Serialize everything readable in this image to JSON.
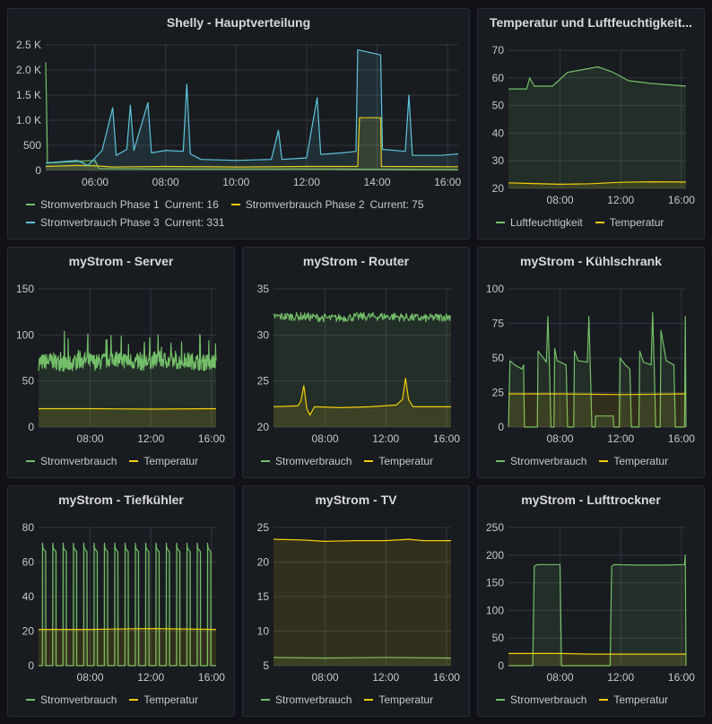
{
  "colors": {
    "background": "#111217",
    "panel": "#181b1f",
    "grid": "#33363c",
    "text": "#c7c8ca",
    "green": "#73bf69",
    "yellow": "#f2cc0c",
    "blue": "#5dc4dd"
  },
  "chart_data": [
    {
      "title": "Shelly - Hauptverteilung",
      "type": "area",
      "x_ticks": [
        "06:00",
        "08:00",
        "10:00",
        "12:00",
        "14:00",
        "16:00"
      ],
      "y_ticks": [
        "0",
        "500",
        "1.0 K",
        "1.5 K",
        "2.0 K",
        "2.5 K"
      ],
      "ylim": [
        0,
        2500
      ],
      "xlim": [
        4.6,
        16.3
      ],
      "grid": true,
      "legend_placement": "bottom",
      "series": [
        {
          "name": "Stromverbrauch Phase 1",
          "color": "green",
          "current_label": "Current: 16",
          "points": [
            [
              4.6,
              2150
            ],
            [
              4.65,
              150
            ],
            [
              5.5,
              180
            ],
            [
              6.0,
              200
            ],
            [
              6.1,
              40
            ],
            [
              8.0,
              30
            ],
            [
              10.0,
              30
            ],
            [
              12.0,
              30
            ],
            [
              13.5,
              25
            ],
            [
              13.52,
              25
            ],
            [
              16.3,
              16
            ]
          ]
        },
        {
          "name": "Stromverbrauch Phase 2",
          "color": "yellow",
          "current_label": "Current: 75",
          "points": [
            [
              4.6,
              80
            ],
            [
              5.5,
              100
            ],
            [
              6.1,
              90
            ],
            [
              6.5,
              70
            ],
            [
              8.0,
              80
            ],
            [
              10.0,
              70
            ],
            [
              12.0,
              80
            ],
            [
              13.45,
              80
            ],
            [
              13.5,
              1050
            ],
            [
              14.1,
              1050
            ],
            [
              14.12,
              80
            ],
            [
              16.3,
              75
            ]
          ]
        },
        {
          "name": "Stromverbrauch Phase 3",
          "color": "blue",
          "current_label": "Current: 331",
          "points": [
            [
              4.6,
              150
            ],
            [
              5.5,
              200
            ],
            [
              5.8,
              100
            ],
            [
              6.2,
              400
            ],
            [
              6.5,
              1250
            ],
            [
              6.6,
              300
            ],
            [
              6.9,
              420
            ],
            [
              7.0,
              1300
            ],
            [
              7.1,
              400
            ],
            [
              7.5,
              1350
            ],
            [
              7.6,
              350
            ],
            [
              8.0,
              400
            ],
            [
              8.5,
              380
            ],
            [
              8.6,
              1720
            ],
            [
              8.7,
              330
            ],
            [
              9.0,
              220
            ],
            [
              10.0,
              200
            ],
            [
              11.0,
              220
            ],
            [
              11.2,
              800
            ],
            [
              11.3,
              220
            ],
            [
              12.0,
              250
            ],
            [
              12.3,
              1450
            ],
            [
              12.4,
              320
            ],
            [
              13.0,
              350
            ],
            [
              13.4,
              380
            ],
            [
              13.45,
              2400
            ],
            [
              14.1,
              2300
            ],
            [
              14.15,
              420
            ],
            [
              14.8,
              380
            ],
            [
              14.9,
              1500
            ],
            [
              15.0,
              300
            ],
            [
              15.8,
              300
            ],
            [
              16.3,
              331
            ]
          ]
        }
      ]
    },
    {
      "title": "Temperatur und Luftfeuchtigkeit...",
      "type": "area",
      "x_ticks": [
        "08:00",
        "12:00",
        "16:00"
      ],
      "y_ticks": [
        "20",
        "30",
        "40",
        "50",
        "60",
        "70"
      ],
      "ylim": [
        20,
        70
      ],
      "xlim": [
        4.6,
        16.3
      ],
      "grid": true,
      "legend_placement": "bottom",
      "series": [
        {
          "name": "Luftfeuchtigkeit",
          "color": "green",
          "points": [
            [
              4.6,
              56
            ],
            [
              5.8,
              56
            ],
            [
              6.0,
              60
            ],
            [
              6.3,
              57
            ],
            [
              7.5,
              57
            ],
            [
              8.5,
              62
            ],
            [
              9.5,
              63
            ],
            [
              10.5,
              64
            ],
            [
              11.5,
              62
            ],
            [
              12.5,
              59
            ],
            [
              14.0,
              58
            ],
            [
              16.3,
              57
            ]
          ]
        },
        {
          "name": "Temperatur",
          "color": "yellow",
          "points": [
            [
              4.6,
              22
            ],
            [
              6.0,
              21.8
            ],
            [
              8.0,
              21.5
            ],
            [
              10.0,
              21.7
            ],
            [
              12.0,
              22.2
            ],
            [
              14.0,
              22.4
            ],
            [
              16.3,
              22.3
            ]
          ]
        }
      ]
    },
    {
      "title": "myStrom - Server",
      "type": "area",
      "x_ticks": [
        "08:00",
        "12:00",
        "16:00"
      ],
      "y_ticks": [
        "0",
        "50",
        "100",
        "150"
      ],
      "ylim": [
        0,
        150
      ],
      "xlim": [
        4.6,
        16.3
      ],
      "grid": true,
      "legend_placement": "bottom",
      "series": [
        {
          "name": "Stromverbrauch",
          "color": "green",
          "points": [
            [
              4.6,
              70
            ],
            [
              5.5,
              72
            ],
            [
              6.5,
              68
            ],
            [
              7.5,
              73
            ],
            [
              8.5,
              70
            ],
            [
              9.5,
              75
            ],
            [
              10.5,
              72
            ],
            [
              11.5,
              70
            ],
            [
              12.5,
              74
            ],
            [
              13.5,
              71
            ],
            [
              14.5,
              72
            ],
            [
              15.5,
              70
            ],
            [
              16.3,
              72
            ]
          ]
        },
        {
          "name": "Temperatur",
          "color": "yellow",
          "points": [
            [
              4.6,
              20
            ],
            [
              8.0,
              20
            ],
            [
              12.0,
              19.5
            ],
            [
              16.3,
              20
            ]
          ]
        }
      ]
    },
    {
      "title": "myStrom - Router",
      "type": "area",
      "x_ticks": [
        "08:00",
        "12:00",
        "16:00"
      ],
      "y_ticks": [
        "20",
        "25",
        "30",
        "35"
      ],
      "ylim": [
        20,
        35
      ],
      "xlim": [
        4.6,
        16.3
      ],
      "grid": true,
      "legend_placement": "bottom",
      "series": [
        {
          "name": "Stromverbrauch",
          "color": "green",
          "points": [
            [
              4.6,
              32
            ],
            [
              6.5,
              32
            ],
            [
              8.5,
              31.8
            ],
            [
              10.5,
              32
            ],
            [
              12.5,
              32
            ],
            [
              14.5,
              31.8
            ],
            [
              16.3,
              32
            ]
          ]
        },
        {
          "name": "Temperatur",
          "color": "yellow",
          "points": [
            [
              4.6,
              22.2
            ],
            [
              6.2,
              22.3
            ],
            [
              6.4,
              22.8
            ],
            [
              6.6,
              24.5
            ],
            [
              6.8,
              22.0
            ],
            [
              7.0,
              21.3
            ],
            [
              7.3,
              22.2
            ],
            [
              9.0,
              22.1
            ],
            [
              11.0,
              22.2
            ],
            [
              12.7,
              22.4
            ],
            [
              13.1,
              23.0
            ],
            [
              13.3,
              25.3
            ],
            [
              13.5,
              23.0
            ],
            [
              13.8,
              22.2
            ],
            [
              16.3,
              22.2
            ]
          ]
        }
      ]
    },
    {
      "title": "myStrom - Kühlschrank",
      "type": "area",
      "x_ticks": [
        "08:00",
        "12:00",
        "16:00"
      ],
      "y_ticks": [
        "0",
        "25",
        "50",
        "75",
        "100"
      ],
      "ylim": [
        0,
        100
      ],
      "xlim": [
        4.6,
        16.3
      ],
      "grid": true,
      "legend_placement": "bottom",
      "series": [
        {
          "name": "Stromverbrauch",
          "color": "green",
          "points": [
            [
              4.6,
              0
            ],
            [
              4.7,
              48
            ],
            [
              5.0,
              45
            ],
            [
              5.5,
              42
            ],
            [
              5.6,
              45
            ],
            [
              5.65,
              0
            ],
            [
              6.5,
              0
            ],
            [
              6.55,
              55
            ],
            [
              6.9,
              50
            ],
            [
              7.1,
              47
            ],
            [
              7.2,
              80
            ],
            [
              7.3,
              45
            ],
            [
              7.4,
              0
            ],
            [
              7.6,
              0
            ],
            [
              7.65,
              57
            ],
            [
              7.8,
              48
            ],
            [
              8.4,
              45
            ],
            [
              8.5,
              0
            ],
            [
              8.9,
              0
            ],
            [
              8.95,
              55
            ],
            [
              9.2,
              48
            ],
            [
              9.8,
              47
            ],
            [
              9.9,
              80
            ],
            [
              10.0,
              40
            ],
            [
              10.1,
              0
            ],
            [
              10.3,
              0
            ],
            [
              10.35,
              8
            ],
            [
              11.5,
              8
            ],
            [
              11.55,
              0
            ],
            [
              11.9,
              0
            ],
            [
              11.95,
              50
            ],
            [
              12.3,
              45
            ],
            [
              12.6,
              42
            ],
            [
              12.7,
              0
            ],
            [
              13.2,
              0
            ],
            [
              13.25,
              55
            ],
            [
              13.5,
              47
            ],
            [
              14.0,
              45
            ],
            [
              14.1,
              83
            ],
            [
              14.2,
              45
            ],
            [
              14.3,
              0
            ],
            [
              14.6,
              0
            ],
            [
              14.65,
              70
            ],
            [
              15.0,
              48
            ],
            [
              15.5,
              45
            ],
            [
              15.6,
              0
            ],
            [
              16.2,
              0
            ],
            [
              16.25,
              80
            ],
            [
              16.3,
              0
            ]
          ]
        },
        {
          "name": "Temperatur",
          "color": "yellow",
          "points": [
            [
              4.6,
              24
            ],
            [
              8.0,
              24
            ],
            [
              12.0,
              23.5
            ],
            [
              16.3,
              24
            ]
          ]
        }
      ]
    },
    {
      "title": "myStrom - Tiefkühler",
      "type": "area",
      "x_ticks": [
        "08:00",
        "12:00",
        "16:00"
      ],
      "y_ticks": [
        "0",
        "20",
        "40",
        "60",
        "80"
      ],
      "ylim": [
        0,
        80
      ],
      "xlim": [
        4.6,
        16.3
      ],
      "grid": true,
      "legend_placement": "bottom",
      "series": [
        {
          "name": "Stromverbrauch",
          "color": "green",
          "cycle": {
            "on_value": 68,
            "off_value": 0,
            "first_on": 4.85,
            "period": 0.68,
            "on_duration": 0.22,
            "count": 17
          },
          "points": []
        },
        {
          "name": "Temperatur",
          "color": "yellow",
          "points": [
            [
              4.6,
              21
            ],
            [
              8.0,
              21
            ],
            [
              12.0,
              21.5
            ],
            [
              16.3,
              21
            ]
          ]
        }
      ]
    },
    {
      "title": "myStrom - TV",
      "type": "area",
      "x_ticks": [
        "08:00",
        "12:00",
        "16:00"
      ],
      "y_ticks": [
        "5",
        "10",
        "15",
        "20",
        "25"
      ],
      "ylim": [
        5,
        25
      ],
      "xlim": [
        4.6,
        16.3
      ],
      "grid": true,
      "legend_placement": "bottom",
      "series": [
        {
          "name": "Stromverbrauch",
          "color": "green",
          "points": [
            [
              4.6,
              6.2
            ],
            [
              8.0,
              6.1
            ],
            [
              12.0,
              6.2
            ],
            [
              16.3,
              6.1
            ]
          ]
        },
        {
          "name": "Temperatur",
          "color": "yellow",
          "points": [
            [
              4.6,
              23.3
            ],
            [
              6.5,
              23.2
            ],
            [
              8.0,
              23.0
            ],
            [
              10.0,
              23.1
            ],
            [
              12.0,
              23.1
            ],
            [
              13.5,
              23.3
            ],
            [
              14.5,
              23.1
            ],
            [
              16.3,
              23.1
            ]
          ]
        }
      ]
    },
    {
      "title": "myStrom - Lufttrockner",
      "type": "area",
      "x_ticks": [
        "08:00",
        "12:00",
        "16:00"
      ],
      "y_ticks": [
        "0",
        "50",
        "100",
        "150",
        "200",
        "250"
      ],
      "ylim": [
        0,
        250
      ],
      "xlim": [
        4.6,
        16.3
      ],
      "grid": true,
      "legend_placement": "bottom",
      "series": [
        {
          "name": "Stromverbrauch",
          "color": "green",
          "points": [
            [
              4.6,
              0
            ],
            [
              6.2,
              0
            ],
            [
              6.3,
              180
            ],
            [
              6.5,
              183
            ],
            [
              8.0,
              183
            ],
            [
              8.1,
              0
            ],
            [
              11.3,
              0
            ],
            [
              11.4,
              180
            ],
            [
              11.6,
              183
            ],
            [
              13.0,
              182
            ],
            [
              15.0,
              182
            ],
            [
              16.2,
              183
            ],
            [
              16.25,
              200
            ],
            [
              16.3,
              0
            ]
          ]
        },
        {
          "name": "Temperatur",
          "color": "yellow",
          "points": [
            [
              4.6,
              22
            ],
            [
              8.0,
              22
            ],
            [
              10.0,
              21
            ],
            [
              12.0,
              21
            ],
            [
              16.3,
              21
            ]
          ]
        }
      ]
    }
  ]
}
